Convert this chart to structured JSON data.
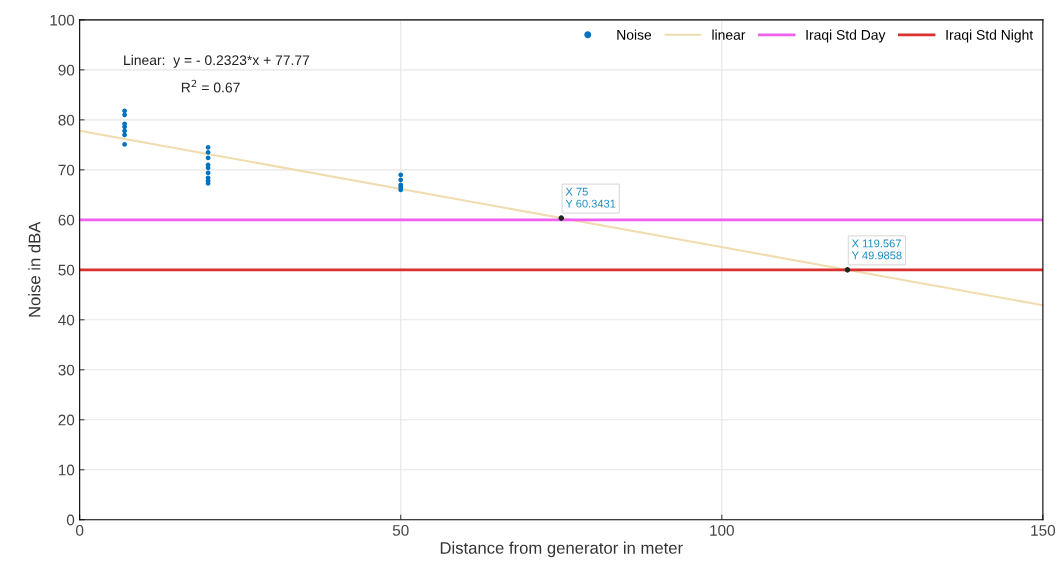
{
  "chart_data": {
    "type": "scatter",
    "xlabel": "Distance from generator in meter",
    "ylabel": "Noise in dBA",
    "xlim": [
      0,
      150
    ],
    "xticks": [
      0,
      50,
      100,
      150
    ],
    "ylim": [
      0,
      100
    ],
    "yticks": [
      0,
      10,
      20,
      30,
      40,
      50,
      60,
      70,
      80,
      90,
      100
    ],
    "grid": true,
    "legend": "top right",
    "series": [
      {
        "name": "Noise",
        "marker": "circle",
        "color": "#0072bd",
        "x": [
          7,
          7,
          7,
          7,
          7,
          7,
          7,
          20,
          20,
          20,
          20,
          20,
          20,
          20,
          20,
          20,
          50,
          50,
          50,
          50,
          50
        ],
        "values": [
          81.8,
          81.0,
          79.2,
          78.6,
          77.8,
          77.0,
          75.1,
          74.5,
          73.5,
          72.4,
          71.0,
          70.4,
          69.4,
          68.4,
          67.8,
          67.3,
          69.0,
          68.0,
          67.0,
          66.5,
          66.0
        ]
      },
      {
        "name": "linear",
        "type": "line",
        "color": "#f0dcae",
        "x": [
          0,
          150
        ],
        "values": [
          77.8,
          42.9
        ]
      }
    ],
    "ref_lines": [
      {
        "axis": "y",
        "value": 60,
        "label": "Iraqi Std Day",
        "color": "#f060f0"
      },
      {
        "axis": "y",
        "value": 50,
        "label": "Iraqi Std Night",
        "color": "#d93030"
      }
    ],
    "annotations": [
      "Linear:  y = - 0.2323*x + 77.77",
      "R$^{2}$ = 0.67",
      {
        "text": "X 75\nY 60.3431",
        "x": 75,
        "y": 60.3431
      },
      {
        "text": "X 119.567\nY 49.9858",
        "x": 119.567,
        "y": 49.9858
      }
    ]
  }
}
